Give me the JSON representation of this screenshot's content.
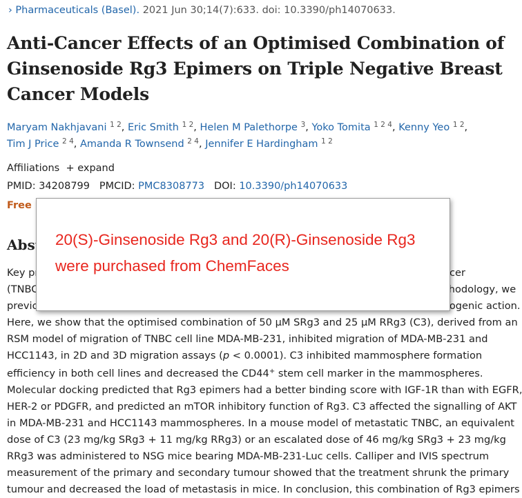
{
  "citation": {
    "journal": "Pharmaceuticals (Basel).",
    "details": "2021 Jun 30;14(7):633. doi: 10.3390/ph14070633."
  },
  "title": "Anti-Cancer Effects of an Optimised Combination of Ginsenoside Rg3 Epimers on Triple Negative Breast Cancer Models",
  "author_separator": ",",
  "authors": [
    {
      "name": "Maryam Nakhjavani",
      "affiliations": "1 2"
    },
    {
      "name": "Eric Smith",
      "affiliations": "1 2"
    },
    {
      "name": "Helen M Palethorpe",
      "affiliations": "3"
    },
    {
      "name": "Yoko Tomita",
      "affiliations": "1 2 4"
    },
    {
      "name": "Kenny Yeo",
      "affiliations": "1 2"
    },
    {
      "name": "Tim J Price",
      "affiliations": "2 4"
    },
    {
      "name": "Amanda R Townsend",
      "affiliations": "2 4"
    },
    {
      "name": "Jennifer E Hardingham",
      "affiliations": "1 2"
    }
  ],
  "affiliations": {
    "label": "Affiliations",
    "expand": "+ expand"
  },
  "identifiers": {
    "pmid_label": "PMID:",
    "pmid": "34208799",
    "pmcid_label": "PMCID:",
    "pmcid": "PMC8308773",
    "doi_label": "DOI:",
    "doi": "10.3390/ph14070633"
  },
  "free_label": "Free PMC article",
  "abstract": {
    "heading": "Abstract",
    "lines": [
      [
        "Key problems with the current standard of care treatment for triple-negative breast cancer"
      ],
      [
        "(TNBC) are toxicity and development of tumour resistance. Using response surface methodology, we"
      ],
      [
        "previously optimised the combination of epimers of ginsenoside Rg3 (Rg3) for anti-angiogenic action."
      ],
      [
        "Here, we show that the optimised combination of 50 µM SRg3 and 25 µM RRg3 (C3), derived from an"
      ],
      [
        "RSM model of migration of TNBC cell line MDA-MB-231, inhibited migration of MDA-MB-231 and"
      ],
      [
        "HCC1143, in 2D and 3D migration assays (",
        "p",
        " < 0.0001). C3 inhibited mammosphere formation"
      ],
      [
        "efficiency in both cell lines and decreased the CD44",
        "+",
        " stem cell marker in the mammospheres."
      ],
      [
        "Molecular docking predicted that Rg3 epimers had a better binding score with IGF-1R than with EGFR,"
      ],
      [
        "HER-2 or PDGFR, and predicted an mTOR inhibitory function of Rg3. C3 affected the signalling of AKT"
      ],
      [
        "in MDA-MB-231 and HCC1143 mammospheres. In a mouse model of metastatic TNBC, an equivalent"
      ],
      [
        "dose of C3 (23 mg/kg SRg3 + 11 mg/kg RRg3) or an escalated dose of 46 mg/kg SRg3 + 23 mg/kg"
      ],
      [
        "RRg3 was administered to NSG mice bearing MDA-MB-231-Luc cells. Calliper and IVIS spectrum"
      ],
      [
        "measurement of the primary and secondary tumour showed that the treatment shrunk the primary"
      ],
      [
        "tumour and decreased the load of metastasis in mice. In conclusion, this combination of Rg3 epimers"
      ]
    ]
  },
  "callout": {
    "lines": [
      "20(S)-Ginsenoside Rg3 and 20(R)-Ginsenoside Rg3",
      "were purchased from ChemFaces"
    ]
  }
}
